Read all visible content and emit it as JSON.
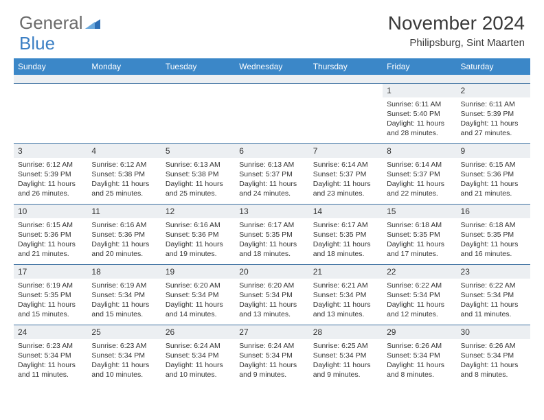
{
  "logo": {
    "word1": "General",
    "word2": "Blue"
  },
  "header": {
    "title": "November 2024",
    "location": "Philipsburg, Sint Maarten"
  },
  "colors": {
    "header_bg": "#3b87c8",
    "header_text": "#ffffff",
    "daynum_bg": "#eceff2",
    "row_border": "#3b6fa0",
    "body_text": "#333333",
    "logo_gray": "#6b6b6b",
    "logo_blue": "#3b7fc4"
  },
  "day_labels": [
    "Sunday",
    "Monday",
    "Tuesday",
    "Wednesday",
    "Thursday",
    "Friday",
    "Saturday"
  ],
  "weeks": [
    [
      {
        "blank": true
      },
      {
        "blank": true
      },
      {
        "blank": true
      },
      {
        "blank": true
      },
      {
        "blank": true
      },
      {
        "n": "1",
        "sr": "Sunrise: 6:11 AM",
        "ss": "Sunset: 5:40 PM",
        "d1": "Daylight: 11 hours",
        "d2": "and 28 minutes."
      },
      {
        "n": "2",
        "sr": "Sunrise: 6:11 AM",
        "ss": "Sunset: 5:39 PM",
        "d1": "Daylight: 11 hours",
        "d2": "and 27 minutes."
      }
    ],
    [
      {
        "n": "3",
        "sr": "Sunrise: 6:12 AM",
        "ss": "Sunset: 5:39 PM",
        "d1": "Daylight: 11 hours",
        "d2": "and 26 minutes."
      },
      {
        "n": "4",
        "sr": "Sunrise: 6:12 AM",
        "ss": "Sunset: 5:38 PM",
        "d1": "Daylight: 11 hours",
        "d2": "and 25 minutes."
      },
      {
        "n": "5",
        "sr": "Sunrise: 6:13 AM",
        "ss": "Sunset: 5:38 PM",
        "d1": "Daylight: 11 hours",
        "d2": "and 25 minutes."
      },
      {
        "n": "6",
        "sr": "Sunrise: 6:13 AM",
        "ss": "Sunset: 5:37 PM",
        "d1": "Daylight: 11 hours",
        "d2": "and 24 minutes."
      },
      {
        "n": "7",
        "sr": "Sunrise: 6:14 AM",
        "ss": "Sunset: 5:37 PM",
        "d1": "Daylight: 11 hours",
        "d2": "and 23 minutes."
      },
      {
        "n": "8",
        "sr": "Sunrise: 6:14 AM",
        "ss": "Sunset: 5:37 PM",
        "d1": "Daylight: 11 hours",
        "d2": "and 22 minutes."
      },
      {
        "n": "9",
        "sr": "Sunrise: 6:15 AM",
        "ss": "Sunset: 5:36 PM",
        "d1": "Daylight: 11 hours",
        "d2": "and 21 minutes."
      }
    ],
    [
      {
        "n": "10",
        "sr": "Sunrise: 6:15 AM",
        "ss": "Sunset: 5:36 PM",
        "d1": "Daylight: 11 hours",
        "d2": "and 21 minutes."
      },
      {
        "n": "11",
        "sr": "Sunrise: 6:16 AM",
        "ss": "Sunset: 5:36 PM",
        "d1": "Daylight: 11 hours",
        "d2": "and 20 minutes."
      },
      {
        "n": "12",
        "sr": "Sunrise: 6:16 AM",
        "ss": "Sunset: 5:36 PM",
        "d1": "Daylight: 11 hours",
        "d2": "and 19 minutes."
      },
      {
        "n": "13",
        "sr": "Sunrise: 6:17 AM",
        "ss": "Sunset: 5:35 PM",
        "d1": "Daylight: 11 hours",
        "d2": "and 18 minutes."
      },
      {
        "n": "14",
        "sr": "Sunrise: 6:17 AM",
        "ss": "Sunset: 5:35 PM",
        "d1": "Daylight: 11 hours",
        "d2": "and 18 minutes."
      },
      {
        "n": "15",
        "sr": "Sunrise: 6:18 AM",
        "ss": "Sunset: 5:35 PM",
        "d1": "Daylight: 11 hours",
        "d2": "and 17 minutes."
      },
      {
        "n": "16",
        "sr": "Sunrise: 6:18 AM",
        "ss": "Sunset: 5:35 PM",
        "d1": "Daylight: 11 hours",
        "d2": "and 16 minutes."
      }
    ],
    [
      {
        "n": "17",
        "sr": "Sunrise: 6:19 AM",
        "ss": "Sunset: 5:35 PM",
        "d1": "Daylight: 11 hours",
        "d2": "and 15 minutes."
      },
      {
        "n": "18",
        "sr": "Sunrise: 6:19 AM",
        "ss": "Sunset: 5:34 PM",
        "d1": "Daylight: 11 hours",
        "d2": "and 15 minutes."
      },
      {
        "n": "19",
        "sr": "Sunrise: 6:20 AM",
        "ss": "Sunset: 5:34 PM",
        "d1": "Daylight: 11 hours",
        "d2": "and 14 minutes."
      },
      {
        "n": "20",
        "sr": "Sunrise: 6:20 AM",
        "ss": "Sunset: 5:34 PM",
        "d1": "Daylight: 11 hours",
        "d2": "and 13 minutes."
      },
      {
        "n": "21",
        "sr": "Sunrise: 6:21 AM",
        "ss": "Sunset: 5:34 PM",
        "d1": "Daylight: 11 hours",
        "d2": "and 13 minutes."
      },
      {
        "n": "22",
        "sr": "Sunrise: 6:22 AM",
        "ss": "Sunset: 5:34 PM",
        "d1": "Daylight: 11 hours",
        "d2": "and 12 minutes."
      },
      {
        "n": "23",
        "sr": "Sunrise: 6:22 AM",
        "ss": "Sunset: 5:34 PM",
        "d1": "Daylight: 11 hours",
        "d2": "and 11 minutes."
      }
    ],
    [
      {
        "n": "24",
        "sr": "Sunrise: 6:23 AM",
        "ss": "Sunset: 5:34 PM",
        "d1": "Daylight: 11 hours",
        "d2": "and 11 minutes."
      },
      {
        "n": "25",
        "sr": "Sunrise: 6:23 AM",
        "ss": "Sunset: 5:34 PM",
        "d1": "Daylight: 11 hours",
        "d2": "and 10 minutes."
      },
      {
        "n": "26",
        "sr": "Sunrise: 6:24 AM",
        "ss": "Sunset: 5:34 PM",
        "d1": "Daylight: 11 hours",
        "d2": "and 10 minutes."
      },
      {
        "n": "27",
        "sr": "Sunrise: 6:24 AM",
        "ss": "Sunset: 5:34 PM",
        "d1": "Daylight: 11 hours",
        "d2": "and 9 minutes."
      },
      {
        "n": "28",
        "sr": "Sunrise: 6:25 AM",
        "ss": "Sunset: 5:34 PM",
        "d1": "Daylight: 11 hours",
        "d2": "and 9 minutes."
      },
      {
        "n": "29",
        "sr": "Sunrise: 6:26 AM",
        "ss": "Sunset: 5:34 PM",
        "d1": "Daylight: 11 hours",
        "d2": "and 8 minutes."
      },
      {
        "n": "30",
        "sr": "Sunrise: 6:26 AM",
        "ss": "Sunset: 5:34 PM",
        "d1": "Daylight: 11 hours",
        "d2": "and 8 minutes."
      }
    ]
  ]
}
